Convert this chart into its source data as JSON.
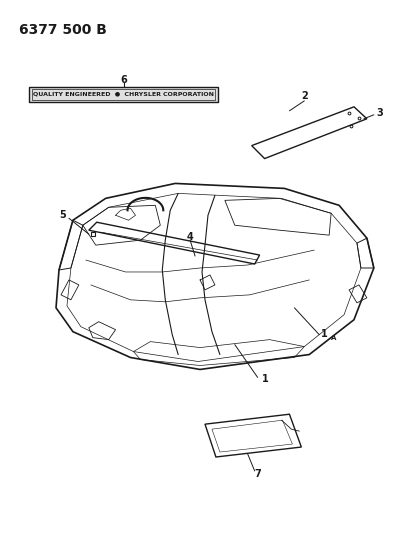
{
  "title_code": "6377 500 B",
  "background_color": "#ffffff",
  "line_color": "#1a1a1a",
  "badge_text": "QUALITY ENGINEERED  ●  CHRYSLER CORPORATION",
  "fig_width": 4.1,
  "fig_height": 5.33,
  "dpi": 100
}
